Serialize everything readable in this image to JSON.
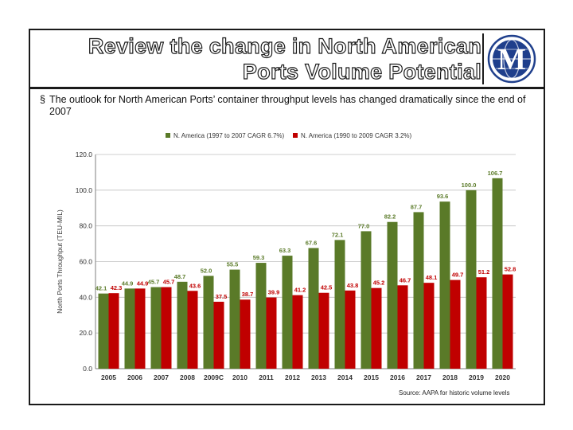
{
  "slide": {
    "title_line1": "Review the change in North American",
    "title_line2": "Ports Volume Potential",
    "bullet_mark": "§",
    "bullet_text": "The outlook for North American Ports’ container throughput levels has changed dramatically since the end of 2007",
    "source": "Source: AAPA for historic volume levels",
    "logo_letter": "M",
    "logo_colors": {
      "globe": "#1f3f8c",
      "letter": "#ffffff",
      "ring": "#1f3f8c"
    }
  },
  "chart_data": {
    "type": "bar",
    "title": "",
    "xlabel": "",
    "ylabel": "North Ports Throughput (TEU-MIL)",
    "ylim": [
      0,
      120
    ],
    "yticks": [
      0,
      20,
      40,
      60,
      80,
      100,
      120
    ],
    "ytick_labels": [
      "0.0",
      "20.0",
      "40.0",
      "60.0",
      "80.0",
      "100.0",
      "120.0"
    ],
    "categories": [
      "2005",
      "2006",
      "2007",
      "2008",
      "2009C",
      "2010",
      "2011",
      "2012",
      "2013",
      "2014",
      "2015",
      "2016",
      "2017",
      "2018",
      "2019",
      "2020"
    ],
    "legend_position": "top",
    "series": [
      {
        "name": "N. America (1997 to 2007 CAGR 6.7%)",
        "color": "#5a7a28",
        "values": [
          42.1,
          44.9,
          45.7,
          48.7,
          52.0,
          55.5,
          59.3,
          63.3,
          67.6,
          72.1,
          77.0,
          82.2,
          87.7,
          93.6,
          100.0,
          106.7
        ],
        "labels": [
          "42.1",
          "44.9",
          "45.7",
          "48.7",
          "52.0",
          "55.5",
          "59.3",
          "63.3",
          "67.6",
          "72.1",
          "77.0",
          "82.2",
          "87.7",
          "93.6",
          "100.0",
          "106.7"
        ]
      },
      {
        "name": "N. America (1990 to 2009 CAGR 3.2%)",
        "color": "#c00000",
        "values": [
          42.3,
          44.9,
          45.7,
          43.6,
          37.5,
          38.7,
          39.9,
          41.2,
          42.5,
          43.8,
          45.2,
          46.7,
          48.1,
          49.7,
          51.2,
          52.8
        ],
        "labels": [
          "42.3",
          "44.9",
          "45.7",
          "43.6",
          "37.5",
          "38.7",
          "39.9",
          "41.2",
          "42.5",
          "43.8",
          "45.2",
          "46.7",
          "48.1",
          "49.7",
          "51.2",
          "52.8"
        ]
      }
    ]
  }
}
